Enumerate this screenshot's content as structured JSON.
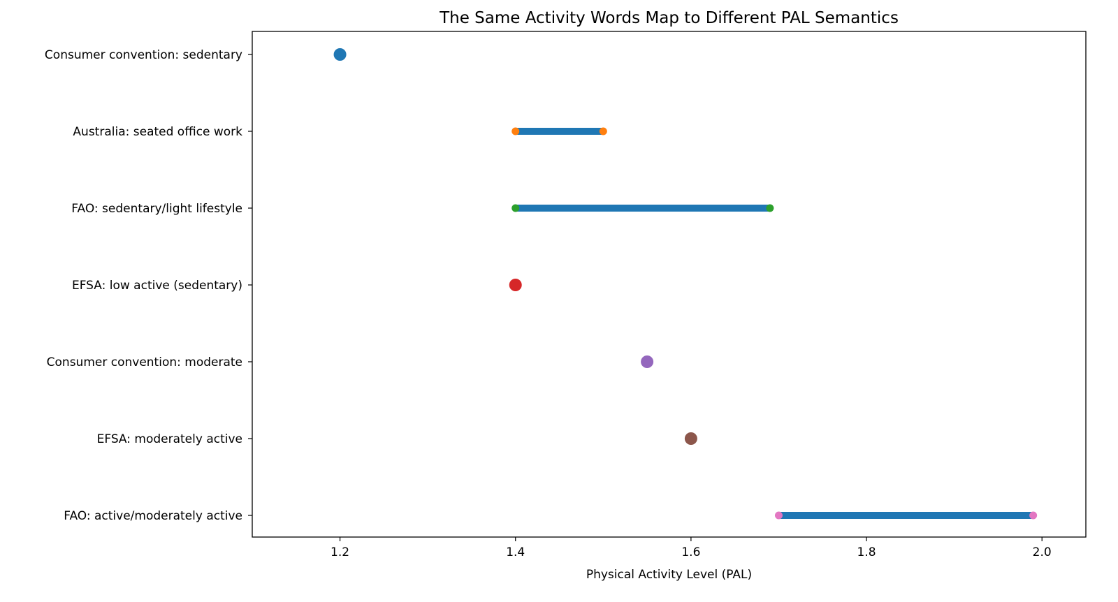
{
  "chart_data": {
    "type": "range-dot",
    "title": "The Same Activity Words Map to Different PAL Semantics",
    "xlabel": "Physical Activity Level (PAL)",
    "ylabel": "",
    "xlim": [
      1.1,
      2.05
    ],
    "xticks": [
      1.2,
      1.4,
      1.6,
      1.8,
      2.0
    ],
    "xtick_labels": [
      "1.2",
      "1.4",
      "1.6",
      "1.8",
      "2.0"
    ],
    "grid": false,
    "range_line_color": "#1f77b4",
    "categories": [
      "Consumer convention: sedentary",
      "Australia: seated office work",
      "FAO: sedentary/light lifestyle",
      "EFSA: low active (sedentary)",
      "Consumer convention: moderate",
      "EFSA: moderately active",
      "FAO: active/moderately active"
    ],
    "entries": [
      {
        "label": "Consumer convention: sedentary",
        "kind": "point",
        "value": 1.2,
        "color": "#1f77b4"
      },
      {
        "label": "Australia: seated office work",
        "kind": "range",
        "low": 1.4,
        "high": 1.5,
        "color": "#ff7f0e"
      },
      {
        "label": "FAO: sedentary/light lifestyle",
        "kind": "range",
        "low": 1.4,
        "high": 1.69,
        "color": "#2ca02c"
      },
      {
        "label": "EFSA: low active (sedentary)",
        "kind": "point",
        "value": 1.4,
        "color": "#d62728"
      },
      {
        "label": "Consumer convention: moderate",
        "kind": "point",
        "value": 1.55,
        "color": "#9467bd"
      },
      {
        "label": "EFSA: moderately active",
        "kind": "point",
        "value": 1.6,
        "color": "#8c564b"
      },
      {
        "label": "FAO: active/moderately active",
        "kind": "range",
        "low": 1.7,
        "high": 1.99,
        "color": "#e377c2"
      }
    ]
  }
}
